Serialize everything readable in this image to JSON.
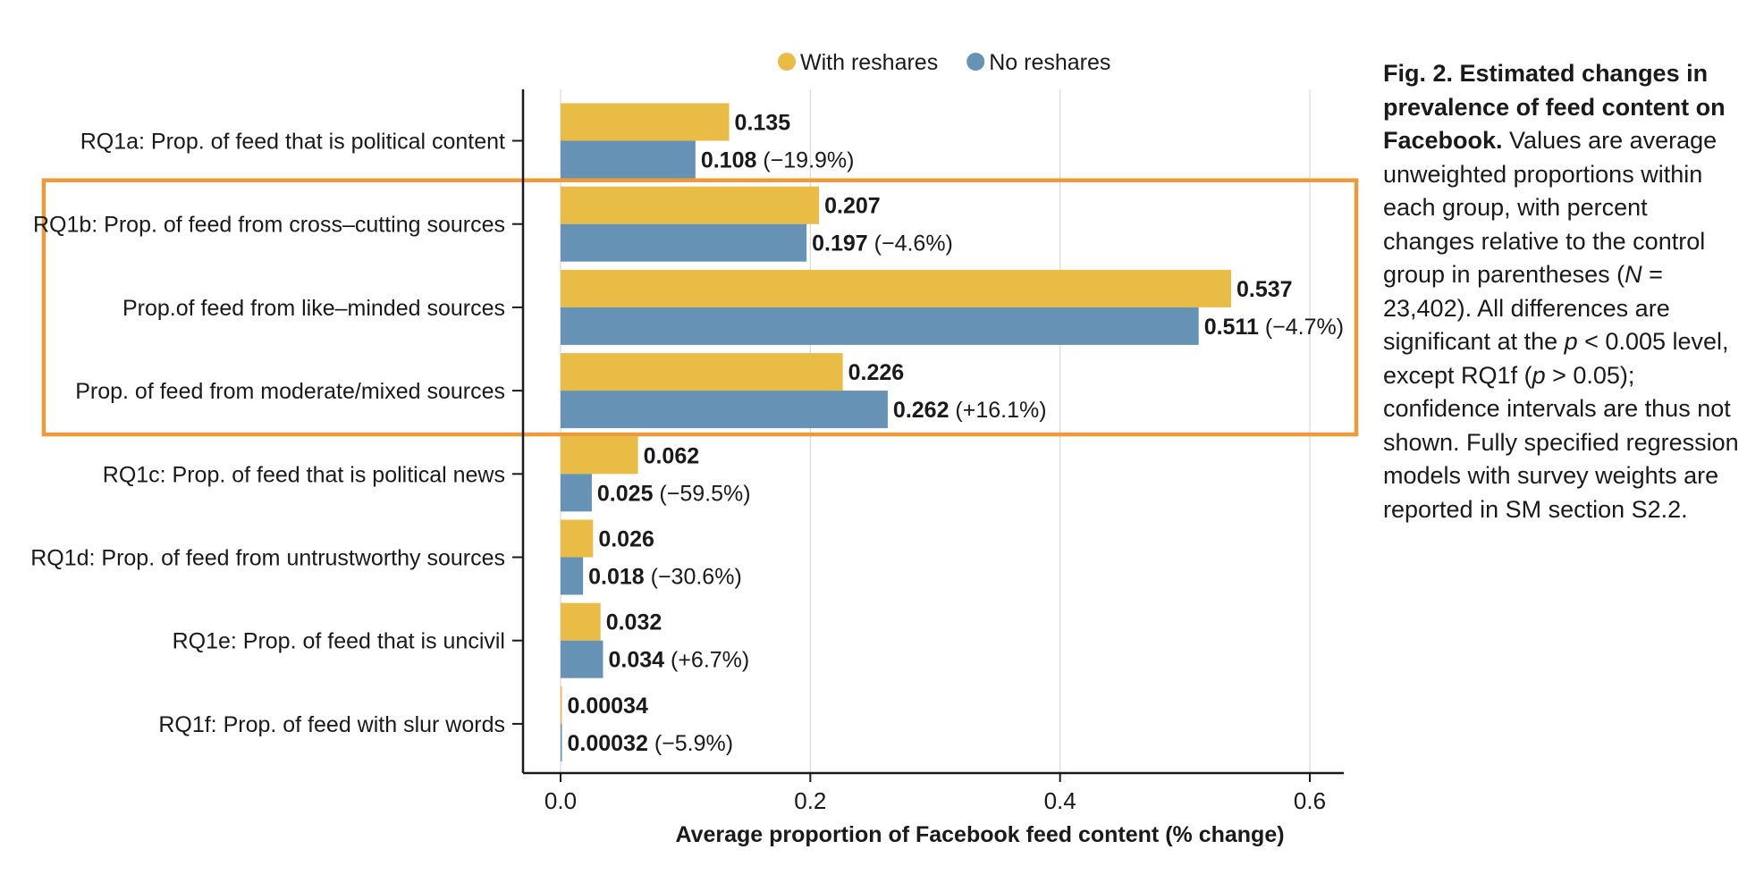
{
  "chart_data": {
    "type": "bar",
    "orientation": "horizontal",
    "categories": [
      "RQ1a: Prop. of feed that is political content",
      "RQ1b: Prop. of feed from cross–cutting sources",
      "Prop.of feed from like–minded sources",
      "Prop. of feed from moderate/mixed sources",
      "RQ1c: Prop. of feed that is political news",
      "RQ1d: Prop. of feed from untrustworthy sources",
      "RQ1e: Prop. of feed that is uncivil",
      "RQ1f: Prop. of feed with slur words"
    ],
    "series": [
      {
        "name": "With reshares",
        "color": "#E8BC45",
        "values": [
          0.135,
          0.207,
          0.537,
          0.226,
          0.062,
          0.026,
          0.032,
          0.00034
        ],
        "labels": [
          "0.135",
          "0.207",
          "0.537",
          "0.226",
          "0.062",
          "0.026",
          "0.032",
          "0.00034"
        ],
        "changes": [
          "",
          "",
          "",
          "",
          "",
          "",
          "",
          ""
        ]
      },
      {
        "name": "No reshares",
        "color": "#6592B5",
        "values": [
          0.108,
          0.197,
          0.511,
          0.262,
          0.025,
          0.018,
          0.034,
          0.00032
        ],
        "labels": [
          "0.108",
          "0.197",
          "0.511",
          "0.262",
          "0.025",
          "0.018",
          "0.034",
          "0.00032"
        ],
        "changes": [
          "(−19.9%)",
          "(−4.6%)",
          "(−4.7%)",
          "(+16.1%)",
          "(−59.5%)",
          "(−30.6%)",
          "(+6.7%)",
          "(−5.9%)"
        ]
      }
    ],
    "xlabel": "Average proportion of Facebook feed content (% change)",
    "xticks": [
      "0.0",
      "0.2",
      "0.4",
      "0.6"
    ],
    "xlim": [
      -0.03,
      0.63
    ],
    "grid": "vertical",
    "legend_position": "top-center",
    "highlight": {
      "from_category": "RQ1b: Prop. of feed from cross–cutting sources",
      "to_category": "Prop. of feed from moderate/mixed sources",
      "color": "#EE9A3A"
    }
  },
  "caption": {
    "title": "Fig. 2. Estimated changes in prevalence of feed content on Facebook.",
    "body_1": " Values are average unweighted proportions within each group, with percent changes relative to the control group in parentheses (",
    "n_symbol": "N",
    "body_2": " = 23,402). All differences are significant at the ",
    "p1": "p",
    "body_3": " < 0.005 level, except RQ1f (",
    "p2": "p",
    "body_4": " > 0.05); confidence intervals are thus not shown. Fully specified regression models with survey weights are reported in SM section S2.2."
  }
}
